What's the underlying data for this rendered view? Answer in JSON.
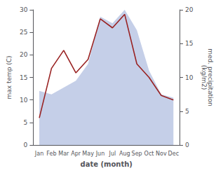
{
  "chart_data": {
    "type": "line",
    "xlabel": "date (month)",
    "ylabel": "max temp (C)",
    "y2label": "med. precipitation\n(kg/m2)",
    "categories": [
      "Jan",
      "Feb",
      "Mar",
      "Apr",
      "May",
      "Jun",
      "Jul",
      "Aug",
      "Sep",
      "Oct",
      "Nov",
      "Dec"
    ],
    "series": [
      {
        "type": "area",
        "color": "#c5cfe8",
        "axis": "y2",
        "values": [
          8,
          7.5,
          8.5,
          9.5,
          12,
          19,
          18,
          20,
          17,
          11,
          7.5,
          7
        ]
      },
      {
        "type": "line",
        "color": "#992222",
        "values": [
          6,
          17,
          21,
          16,
          19,
          28,
          26,
          29,
          18,
          15,
          11,
          10
        ]
      }
    ],
    "ylim": [
      0,
      30
    ],
    "yticks": [
      0,
      5,
      10,
      15,
      20,
      25,
      30
    ],
    "y2lim": [
      0,
      20
    ],
    "y2ticks": [
      0,
      5,
      10,
      15,
      20
    ],
    "grid": false
  }
}
